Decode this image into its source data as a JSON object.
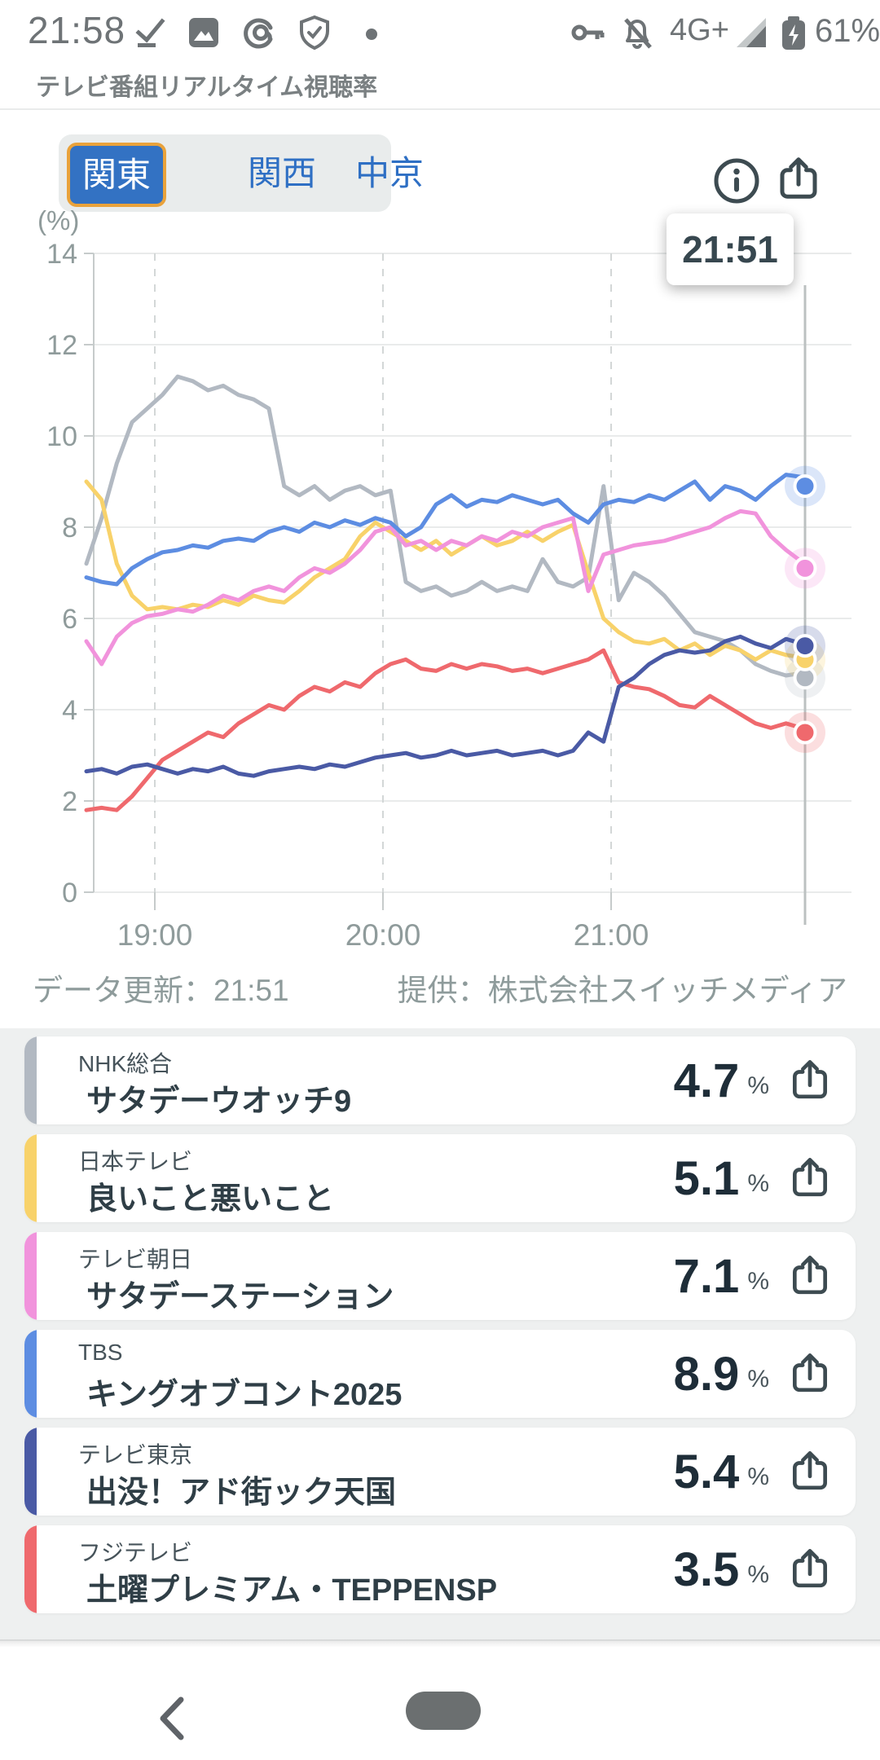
{
  "status_bar": {
    "time": "21:58",
    "network": "4G+",
    "battery_percent": "61%",
    "icons_left": [
      "checkmark-icon",
      "gallery-icon",
      "threads-icon",
      "shield-check-icon",
      "notification-dot"
    ],
    "icons_right": [
      "key-icon",
      "bell-off-icon",
      "signal-icon",
      "battery-charging-icon"
    ]
  },
  "header": {
    "title": "テレビ番組リアルタイム視聴率"
  },
  "tabs": [
    {
      "label": "関東",
      "selected": true
    },
    {
      "label": "関西",
      "selected": false
    },
    {
      "label": "中京",
      "selected": false
    }
  ],
  "chart_tooltip": {
    "time": "21:51"
  },
  "chart_data": {
    "type": "line",
    "title": "テレビ番組リアルタイム視聴率（関東）",
    "ylabel": "(%)",
    "ylim": [
      0,
      14
    ],
    "yticks": [
      0,
      2,
      4,
      6,
      8,
      10,
      12,
      14
    ],
    "x_start": "18:42",
    "x_end": "21:51",
    "x_gridlines": [
      "19:00",
      "20:00",
      "21:00"
    ],
    "cursor_time": "21:51",
    "grid": true,
    "legend_position": "none",
    "x_minutes": [
      0,
      4,
      8,
      12,
      16,
      20,
      24,
      28,
      32,
      36,
      40,
      44,
      48,
      52,
      56,
      60,
      64,
      68,
      72,
      76,
      80,
      84,
      88,
      92,
      96,
      100,
      104,
      108,
      112,
      116,
      120,
      124,
      128,
      132,
      136,
      140,
      144,
      148,
      152,
      156,
      160,
      164,
      168,
      172,
      176,
      180,
      184,
      188,
      189
    ],
    "series": [
      {
        "name": "NHK総合",
        "color": "#b2b9c2",
        "values": [
          7.2,
          8.2,
          9.4,
          10.3,
          10.6,
          10.9,
          11.3,
          11.2,
          11.0,
          11.1,
          10.9,
          10.8,
          10.6,
          8.9,
          8.7,
          8.9,
          8.6,
          8.8,
          8.9,
          8.7,
          8.8,
          6.8,
          6.6,
          6.7,
          6.5,
          6.6,
          6.8,
          6.6,
          6.7,
          6.6,
          7.3,
          6.8,
          6.7,
          6.9,
          8.9,
          6.4,
          7.0,
          6.8,
          6.5,
          6.1,
          5.7,
          5.6,
          5.5,
          5.3,
          5.0,
          4.85,
          4.75,
          4.8,
          4.7
        ]
      },
      {
        "name": "日本テレビ",
        "color": "#f8d26a",
        "values": [
          9.0,
          8.6,
          7.2,
          6.5,
          6.2,
          6.25,
          6.2,
          6.3,
          6.25,
          6.4,
          6.3,
          6.5,
          6.4,
          6.35,
          6.6,
          6.9,
          7.1,
          7.3,
          7.8,
          8.1,
          7.9,
          7.7,
          7.5,
          7.7,
          7.4,
          7.6,
          7.8,
          7.6,
          7.7,
          7.9,
          7.7,
          7.9,
          8.05,
          7.0,
          6.0,
          5.7,
          5.5,
          5.45,
          5.55,
          5.3,
          5.45,
          5.2,
          5.4,
          5.3,
          5.1,
          5.3,
          5.2,
          5.15,
          5.1
        ]
      },
      {
        "name": "テレビ朝日",
        "color": "#f193dc",
        "values": [
          5.5,
          5.0,
          5.6,
          5.9,
          6.05,
          6.1,
          6.2,
          6.15,
          6.3,
          6.5,
          6.4,
          6.6,
          6.7,
          6.6,
          6.9,
          7.1,
          7.0,
          7.2,
          7.5,
          7.9,
          8.0,
          7.6,
          7.7,
          7.5,
          7.7,
          7.6,
          7.8,
          7.7,
          7.9,
          7.8,
          8.0,
          8.1,
          8.2,
          6.6,
          7.4,
          7.5,
          7.6,
          7.65,
          7.7,
          7.8,
          7.9,
          8.0,
          8.2,
          8.35,
          8.3,
          7.8,
          7.5,
          7.25,
          7.1
        ]
      },
      {
        "name": "フジテレビ",
        "color": "#ef696d",
        "values": [
          1.8,
          1.85,
          1.8,
          2.1,
          2.5,
          2.9,
          3.1,
          3.3,
          3.5,
          3.4,
          3.7,
          3.9,
          4.1,
          4.0,
          4.3,
          4.5,
          4.4,
          4.6,
          4.5,
          4.8,
          5.0,
          5.1,
          4.9,
          4.85,
          5.0,
          4.9,
          5.0,
          4.95,
          4.85,
          4.9,
          4.8,
          4.9,
          5.0,
          5.1,
          5.3,
          4.6,
          4.5,
          4.45,
          4.3,
          4.1,
          4.05,
          4.3,
          4.1,
          3.9,
          3.7,
          3.6,
          3.7,
          3.6,
          3.5
        ]
      },
      {
        "name": "TBS",
        "color": "#5d8de2",
        "values": [
          6.9,
          6.8,
          6.75,
          7.1,
          7.3,
          7.45,
          7.5,
          7.6,
          7.55,
          7.7,
          7.75,
          7.7,
          7.9,
          8.0,
          7.9,
          8.1,
          8.0,
          8.15,
          8.05,
          8.2,
          8.1,
          7.8,
          8.0,
          8.5,
          8.7,
          8.45,
          8.6,
          8.55,
          8.7,
          8.6,
          8.5,
          8.6,
          8.3,
          8.1,
          8.5,
          8.6,
          8.55,
          8.7,
          8.6,
          8.8,
          9.0,
          8.6,
          8.9,
          8.8,
          8.6,
          8.9,
          9.15,
          9.1,
          8.9
        ]
      },
      {
        "name": "テレビ東京",
        "color": "#4a5aa5",
        "values": [
          2.65,
          2.7,
          2.6,
          2.75,
          2.8,
          2.7,
          2.6,
          2.7,
          2.65,
          2.75,
          2.6,
          2.55,
          2.65,
          2.7,
          2.75,
          2.7,
          2.8,
          2.75,
          2.85,
          2.95,
          3.0,
          3.05,
          2.95,
          3.0,
          3.1,
          3.0,
          3.05,
          3.1,
          3.0,
          3.05,
          3.1,
          3.0,
          3.1,
          3.5,
          3.3,
          4.5,
          4.7,
          5.0,
          5.2,
          5.3,
          5.25,
          5.3,
          5.5,
          5.6,
          5.45,
          5.35,
          5.55,
          5.45,
          5.4
        ]
      }
    ]
  },
  "chart_footer": {
    "updated": "データ更新：21:51",
    "provider": "提供：株式会社スイッチメディア"
  },
  "programs": [
    {
      "channel": "NHK総合",
      "program": "サタデーウオッチ9",
      "rating": "4.7",
      "unit": "%",
      "color": "#b2b9c2"
    },
    {
      "channel": "日本テレビ",
      "program": "良いこと悪いこと",
      "rating": "5.1",
      "unit": "%",
      "color": "#f8d26a"
    },
    {
      "channel": "テレビ朝日",
      "program": "サタデーステーション",
      "rating": "7.1",
      "unit": "%",
      "color": "#f193dc"
    },
    {
      "channel": "TBS",
      "program": "キングオブコント2025",
      "rating": "8.9",
      "unit": "%",
      "color": "#5d8de2"
    },
    {
      "channel": "テレビ東京",
      "program": "出没！アド街ック天国",
      "rating": "5.4",
      "unit": "%",
      "color": "#4a5aa5"
    },
    {
      "channel": "フジテレビ",
      "program": "土曜プレミアム・TEPPENSP",
      "rating": "3.5",
      "unit": "%",
      "color": "#ef696d"
    }
  ]
}
